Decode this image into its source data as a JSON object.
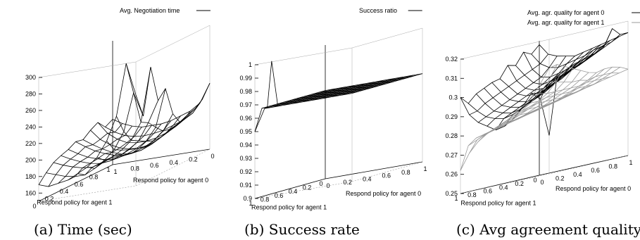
{
  "chart_data": [
    {
      "type": "surface3d",
      "caption": "(a) Time (sec)",
      "legend": [
        {
          "name": "Avg. Negotiation time",
          "color": "#000000"
        }
      ],
      "xlabel": "Respond policy for agent 0",
      "ylabel": "Respond policy for agent 1",
      "z_ticks": [
        "160",
        "180",
        "200",
        "220",
        "240",
        "260",
        "280",
        "300"
      ],
      "x_ticks": [
        "1",
        "0.8",
        "0.6",
        "0.4",
        "0.2",
        "0"
      ],
      "y_ticks": [
        "0",
        "0.2",
        "0.4",
        "0.6",
        "0.8",
        "1"
      ],
      "zlim": [
        150,
        300
      ],
      "x_values": [
        0,
        0.1,
        0.2,
        0.3,
        0.4,
        0.5,
        0.6,
        0.7,
        0.8,
        0.9,
        1.0
      ],
      "y_values": [
        0,
        0.1,
        0.2,
        0.3,
        0.4,
        0.5,
        0.6,
        0.7,
        0.8,
        0.9,
        1.0
      ],
      "series": [
        {
          "name": "Avg. Negotiation time",
          "z": [
            [
              205,
              198,
              193,
              190,
              190,
              190,
              192,
              196,
              200,
              208,
              230
            ],
            [
              200,
              192,
              186,
              183,
              182,
              183,
              185,
              189,
              193,
              200,
              215
            ],
            [
              210,
              195,
              186,
              180,
              178,
              178,
              180,
              184,
              190,
              198,
              208
            ],
            [
              205,
              192,
              184,
              178,
              175,
              174,
              176,
              181,
              188,
              196,
              205
            ],
            [
              198,
              190,
              183,
              177,
              173,
              172,
              174,
              179,
              186,
              194,
              200
            ],
            [
              200,
              192,
              185,
              180,
              176,
              174,
              176,
              180,
              186,
              196,
              215
            ],
            [
              195,
              188,
              182,
              178,
              175,
              175,
              178,
              183,
              190,
              205,
              250
            ],
            [
              192,
              186,
              181,
              177,
              175,
              176,
              180,
              186,
              195,
              215,
              240
            ],
            [
              188,
              183,
              179,
              176,
              175,
              178,
              183,
              190,
              200,
              220,
              285
            ],
            [
              180,
              176,
              172,
              170,
              170,
              176,
              184,
              195,
              215,
              260,
              230
            ],
            [
              170,
              166,
              168,
              170,
              176,
              182,
              192,
              210,
              238,
              300,
              260
            ]
          ]
        }
      ]
    },
    {
      "type": "surface3d",
      "caption": "(b) Success rate",
      "legend": [
        {
          "name": "Success ratio",
          "color": "#000000"
        }
      ],
      "xlabel": "Respond policy for agent 0",
      "ylabel": "Respond policy for agent 1",
      "z_ticks": [
        "0.9",
        "0.91",
        "0.92",
        "0.93",
        "0.94",
        "0.95",
        "0.96",
        "0.97",
        "0.98",
        "0.99",
        "1"
      ],
      "x_ticks": [
        "0",
        "0.2",
        "0.4",
        "0.6",
        "0.8",
        "1"
      ],
      "y_ticks": [
        "1",
        "0.8",
        "0.6",
        "0.4",
        "0.2",
        "0"
      ],
      "zlim": [
        0.9,
        1.0
      ],
      "x_values": [
        0,
        0.1,
        0.2,
        0.3,
        0.4,
        0.5,
        0.6,
        0.7,
        0.8,
        0.9,
        1.0
      ],
      "y_values": [
        0,
        0.1,
        0.2,
        0.3,
        0.4,
        0.5,
        0.6,
        0.7,
        0.8,
        0.9,
        1.0
      ],
      "series": [
        {
          "name": "Success ratio",
          "z": [
            [
              0.966,
              0.966,
              0.966,
              0.966,
              0.966,
              0.966,
              0.966,
              0.966,
              0.966,
              0.966,
              0.966
            ],
            [
              0.966,
              0.966,
              0.966,
              0.966,
              0.966,
              0.966,
              0.966,
              0.966,
              0.966,
              0.966,
              0.966
            ],
            [
              0.966,
              0.966,
              0.966,
              0.966,
              0.966,
              0.966,
              0.966,
              0.966,
              0.966,
              0.966,
              0.966
            ],
            [
              0.966,
              0.966,
              0.966,
              0.966,
              0.966,
              0.966,
              0.966,
              0.966,
              0.966,
              0.966,
              0.966
            ],
            [
              0.966,
              0.966,
              0.966,
              0.966,
              0.966,
              0.966,
              0.966,
              0.966,
              0.966,
              0.966,
              0.966
            ],
            [
              0.966,
              0.966,
              0.966,
              0.966,
              0.966,
              0.966,
              0.966,
              0.966,
              0.966,
              0.966,
              0.966
            ],
            [
              0.966,
              0.966,
              0.966,
              0.966,
              0.966,
              0.966,
              0.966,
              0.966,
              0.966,
              0.966,
              0.966
            ],
            [
              0.966,
              0.966,
              0.966,
              0.966,
              0.966,
              0.966,
              0.966,
              0.966,
              0.966,
              0.966,
              0.966
            ],
            [
              0.966,
              0.966,
              0.966,
              0.966,
              0.966,
              0.966,
              0.966,
              0.966,
              0.966,
              0.966,
              0.966
            ],
            [
              0.966,
              0.966,
              0.966,
              0.966,
              0.966,
              0.966,
              0.966,
              0.966,
              0.966,
              0.966,
              0.966
            ],
            [
              0.95,
              0.966,
              0.966,
              0.966,
              0.966,
              0.966,
              0.966,
              0.966,
              0.966,
              0.966,
              0.966
            ]
          ]
        }
      ],
      "spike_top": 1.0
    },
    {
      "type": "surface3d",
      "caption": "(c) Avg agreement quality",
      "legend": [
        {
          "name": "Avg. agr. quality for agent 0",
          "color": "#000000"
        },
        {
          "name": "Avg. agr. quality for agent 1",
          "color": "#999999"
        }
      ],
      "xlabel": "Respond policy for agent 0",
      "ylabel": "Respond policy for agent 1",
      "z_ticks": [
        "0.25",
        "0.26",
        "0.27",
        "0.28",
        "0.29",
        "0.3",
        "0.31",
        "0.32"
      ],
      "x_ticks": [
        "0",
        "0.2",
        "0.4",
        "0.6",
        "0.8",
        "1"
      ],
      "y_ticks": [
        "1",
        "0.8",
        "0.6",
        "0.4",
        "0.2",
        "0"
      ],
      "zlim": [
        0.25,
        0.32
      ],
      "x_values": [
        0,
        0.1,
        0.2,
        0.3,
        0.4,
        0.5,
        0.6,
        0.7,
        0.8,
        0.9,
        1.0
      ],
      "y_values": [
        0,
        0.1,
        0.2,
        0.3,
        0.4,
        0.5,
        0.6,
        0.7,
        0.8,
        0.9,
        1.0
      ],
      "series": [
        {
          "name": "Avg. agr. quality for agent 0",
          "z": [
            [
              0.318,
              0.312,
              0.31,
              0.309,
              0.308,
              0.309,
              0.31,
              0.311,
              0.312,
              0.313,
              0.314
            ],
            [
              0.314,
              0.308,
              0.305,
              0.304,
              0.305,
              0.306,
              0.307,
              0.309,
              0.31,
              0.311,
              0.314
            ],
            [
              0.316,
              0.306,
              0.301,
              0.3,
              0.301,
              0.302,
              0.304,
              0.306,
              0.307,
              0.309,
              0.318
            ],
            [
              0.31,
              0.304,
              0.299,
              0.297,
              0.298,
              0.299,
              0.301,
              0.303,
              0.305,
              0.307,
              0.31
            ],
            [
              0.311,
              0.302,
              0.297,
              0.295,
              0.295,
              0.297,
              0.299,
              0.301,
              0.303,
              0.305,
              0.309
            ],
            [
              0.305,
              0.3,
              0.295,
              0.293,
              0.293,
              0.294,
              0.296,
              0.298,
              0.301,
              0.303,
              0.306
            ],
            [
              0.304,
              0.298,
              0.293,
              0.291,
              0.29,
              0.291,
              0.293,
              0.296,
              0.299,
              0.302,
              0.305
            ],
            [
              0.302,
              0.296,
              0.291,
              0.289,
              0.288,
              0.289,
              0.291,
              0.294,
              0.297,
              0.3,
              0.304
            ],
            [
              0.3,
              0.294,
              0.289,
              0.287,
              0.286,
              0.287,
              0.289,
              0.292,
              0.295,
              0.299,
              0.302
            ],
            [
              0.296,
              0.291,
              0.287,
              0.285,
              0.284,
              0.285,
              0.287,
              0.29,
              0.293,
              0.297,
              0.3
            ],
            [
              0.3,
              0.29,
              0.285,
              0.282,
              0.279,
              0.28,
              0.283,
              0.288,
              0.294,
              0.29,
              0.27
            ]
          ]
        },
        {
          "name": "Avg. agr. quality for agent 1",
          "z": [
            [
              0.285,
              0.286,
              0.287,
              0.288,
              0.289,
              0.29,
              0.291,
              0.292,
              0.293,
              0.294,
              0.295
            ],
            [
              0.284,
              0.285,
              0.286,
              0.287,
              0.288,
              0.289,
              0.29,
              0.291,
              0.293,
              0.295,
              0.297
            ],
            [
              0.283,
              0.284,
              0.285,
              0.286,
              0.287,
              0.288,
              0.289,
              0.291,
              0.293,
              0.295,
              0.298
            ],
            [
              0.282,
              0.283,
              0.284,
              0.285,
              0.286,
              0.287,
              0.289,
              0.291,
              0.293,
              0.295,
              0.298
            ],
            [
              0.281,
              0.282,
              0.283,
              0.284,
              0.285,
              0.286,
              0.288,
              0.29,
              0.292,
              0.294,
              0.297
            ],
            [
              0.28,
              0.281,
              0.282,
              0.283,
              0.284,
              0.286,
              0.288,
              0.29,
              0.292,
              0.295,
              0.298
            ],
            [
              0.279,
              0.28,
              0.281,
              0.282,
              0.284,
              0.286,
              0.288,
              0.29,
              0.292,
              0.295,
              0.3
            ],
            [
              0.278,
              0.279,
              0.28,
              0.282,
              0.284,
              0.286,
              0.288,
              0.29,
              0.292,
              0.296,
              0.302
            ],
            [
              0.277,
              0.278,
              0.279,
              0.281,
              0.283,
              0.285,
              0.287,
              0.289,
              0.292,
              0.297,
              0.304
            ],
            [
              0.274,
              0.276,
              0.278,
              0.28,
              0.282,
              0.284,
              0.286,
              0.289,
              0.293,
              0.298,
              0.306
            ],
            [
              0.262,
              0.27,
              0.275,
              0.278,
              0.28,
              0.282,
              0.285,
              0.288,
              0.292,
              0.298,
              0.305
            ]
          ]
        }
      ]
    }
  ]
}
